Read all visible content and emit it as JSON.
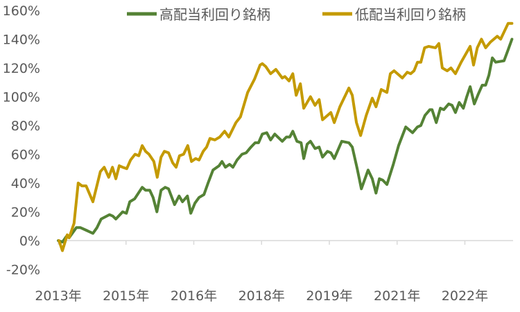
{
  "chart_data": {
    "type": "line",
    "title": "",
    "xlabel": "",
    "ylabel": "",
    "x_unit": "months since Jan 2013",
    "xlim": [
      0,
      120.8
    ],
    "ylim": [
      -20,
      160
    ],
    "y_ticks": [
      -20,
      0,
      20,
      40,
      60,
      80,
      100,
      120,
      140,
      160
    ],
    "y_tick_labels": [
      "-20%",
      "0%",
      "20%",
      "40%",
      "60%",
      "80%",
      "100%",
      "120%",
      "140%",
      "160%"
    ],
    "x_ticks": [
      0,
      18,
      36,
      54,
      72,
      90,
      108
    ],
    "x_tick_labels": [
      "2013年",
      "2015年",
      "2016年",
      "2018年",
      "2019年",
      "2021年",
      "2022年"
    ],
    "grid": false,
    "legend_position": "top",
    "series": [
      {
        "name": "高配当利回り銘柄",
        "color": "#548235",
        "points": [
          [
            0,
            0
          ],
          [
            1.1,
            -1
          ],
          [
            2.2,
            3
          ],
          [
            2.9,
            2
          ],
          [
            4.8,
            9
          ],
          [
            5.9,
            9
          ],
          [
            7.6,
            7
          ],
          [
            9.2,
            5
          ],
          [
            10.3,
            9
          ],
          [
            11.4,
            15
          ],
          [
            13.6,
            18
          ],
          [
            14.5,
            17
          ],
          [
            15.3,
            15
          ],
          [
            17.1,
            20
          ],
          [
            18.1,
            19
          ],
          [
            19.0,
            27
          ],
          [
            20.3,
            29
          ],
          [
            22.3,
            37
          ],
          [
            23.2,
            35
          ],
          [
            24.3,
            35
          ],
          [
            25.2,
            30
          ],
          [
            26.2,
            20
          ],
          [
            27.3,
            35
          ],
          [
            28.4,
            37
          ],
          [
            29.3,
            36
          ],
          [
            30.9,
            25
          ],
          [
            32.1,
            31
          ],
          [
            33.0,
            27
          ],
          [
            34.3,
            31
          ],
          [
            35.2,
            19
          ],
          [
            36.3,
            26
          ],
          [
            37.4,
            30
          ],
          [
            38.7,
            32
          ],
          [
            39.8,
            40
          ],
          [
            41.1,
            49
          ],
          [
            42.7,
            52
          ],
          [
            43.5,
            55
          ],
          [
            44.4,
            51
          ],
          [
            45.5,
            53
          ],
          [
            46.4,
            51
          ],
          [
            47.5,
            56
          ],
          [
            48.8,
            60
          ],
          [
            49.9,
            61
          ],
          [
            51.2,
            65
          ],
          [
            52.3,
            68
          ],
          [
            53.2,
            68
          ],
          [
            54.2,
            74
          ],
          [
            55.4,
            75
          ],
          [
            56.4,
            70
          ],
          [
            57.5,
            74
          ],
          [
            59.5,
            69
          ],
          [
            60.6,
            72
          ],
          [
            61.5,
            72
          ],
          [
            62.3,
            76
          ],
          [
            63.4,
            69
          ],
          [
            64.5,
            68
          ],
          [
            65.2,
            57
          ],
          [
            66.1,
            67
          ],
          [
            67.0,
            69
          ],
          [
            68.2,
            64
          ],
          [
            69.3,
            65
          ],
          [
            70.2,
            58
          ],
          [
            71.5,
            62
          ],
          [
            72.4,
            61
          ],
          [
            73.3,
            57
          ],
          [
            75.3,
            69
          ],
          [
            77.2,
            68
          ],
          [
            78.1,
            65
          ],
          [
            79.4,
            50
          ],
          [
            80.5,
            36
          ],
          [
            82.3,
            49
          ],
          [
            83.4,
            43
          ],
          [
            84.4,
            33
          ],
          [
            85.3,
            43
          ],
          [
            86.2,
            42
          ],
          [
            87.3,
            39
          ],
          [
            89.0,
            53
          ],
          [
            90.4,
            66
          ],
          [
            92.3,
            79
          ],
          [
            94.1,
            75
          ],
          [
            95.4,
            79
          ],
          [
            96.3,
            80
          ],
          [
            97.4,
            87
          ],
          [
            98.7,
            91
          ],
          [
            99.3,
            91
          ],
          [
            100.4,
            82
          ],
          [
            101.5,
            92
          ],
          [
            102.4,
            91
          ],
          [
            103.7,
            95
          ],
          [
            104.6,
            94
          ],
          [
            105.5,
            89
          ],
          [
            106.5,
            96
          ],
          [
            107.6,
            92
          ],
          [
            108.5,
            100
          ],
          [
            109.4,
            107
          ],
          [
            110.5,
            95
          ],
          [
            111.6,
            102
          ],
          [
            112.6,
            108
          ],
          [
            113.5,
            108
          ],
          [
            114.4,
            115
          ],
          [
            115.3,
            127
          ],
          [
            116.2,
            124
          ],
          [
            118.4,
            125
          ],
          [
            119.4,
            132
          ],
          [
            120.5,
            140
          ]
        ]
      },
      {
        "name": "低配当利回り銘柄",
        "color": "#C49A00",
        "points": [
          [
            0.2,
            0
          ],
          [
            1.1,
            -7
          ],
          [
            2.4,
            4
          ],
          [
            2.9,
            2
          ],
          [
            4.2,
            12
          ],
          [
            5.3,
            40
          ],
          [
            6.3,
            38
          ],
          [
            7.4,
            38
          ],
          [
            9.2,
            27
          ],
          [
            11.2,
            48
          ],
          [
            12.2,
            51
          ],
          [
            13.4,
            44
          ],
          [
            14.4,
            51
          ],
          [
            15.3,
            43
          ],
          [
            16.2,
            52
          ],
          [
            17.1,
            51
          ],
          [
            18.2,
            50
          ],
          [
            19.2,
            56
          ],
          [
            20.4,
            60
          ],
          [
            21.4,
            59
          ],
          [
            22.3,
            66
          ],
          [
            23.2,
            62
          ],
          [
            24.1,
            60
          ],
          [
            25.4,
            55
          ],
          [
            26.3,
            44
          ],
          [
            27.3,
            58
          ],
          [
            28.2,
            62
          ],
          [
            29.3,
            61
          ],
          [
            30.4,
            54
          ],
          [
            31.3,
            51
          ],
          [
            32.2,
            59
          ],
          [
            33.3,
            60
          ],
          [
            34.4,
            66
          ],
          [
            35.4,
            55
          ],
          [
            36.5,
            57
          ],
          [
            37.4,
            56
          ],
          [
            38.5,
            62
          ],
          [
            39.4,
            65
          ],
          [
            40.3,
            71
          ],
          [
            41.6,
            70
          ],
          [
            42.9,
            72
          ],
          [
            44.2,
            76
          ],
          [
            45.3,
            72
          ],
          [
            47.2,
            82
          ],
          [
            48.4,
            86
          ],
          [
            50.3,
            103
          ],
          [
            52.1,
            112
          ],
          [
            53.6,
            122
          ],
          [
            54.2,
            123
          ],
          [
            55.1,
            121
          ],
          [
            56.4,
            116
          ],
          [
            57.8,
            119
          ],
          [
            59.5,
            113
          ],
          [
            60.2,
            114
          ],
          [
            61.3,
            111
          ],
          [
            62.3,
            116
          ],
          [
            63.2,
            101
          ],
          [
            64.3,
            109
          ],
          [
            65.2,
            92
          ],
          [
            67.0,
            100
          ],
          [
            68.2,
            94
          ],
          [
            69.3,
            98
          ],
          [
            70.2,
            84
          ],
          [
            71.5,
            87
          ],
          [
            72.4,
            89
          ],
          [
            73.3,
            82
          ],
          [
            74.8,
            93
          ],
          [
            77.2,
            106
          ],
          [
            78.1,
            101
          ],
          [
            79.2,
            82
          ],
          [
            80.3,
            73
          ],
          [
            81.8,
            87
          ],
          [
            83.4,
            99
          ],
          [
            84.4,
            93
          ],
          [
            85.8,
            105
          ],
          [
            87.3,
            103
          ],
          [
            88.2,
            116
          ],
          [
            89.2,
            118
          ],
          [
            91.4,
            113
          ],
          [
            92.7,
            117
          ],
          [
            93.6,
            116
          ],
          [
            94.5,
            118
          ],
          [
            95.4,
            124
          ],
          [
            96.3,
            124
          ],
          [
            97.3,
            134
          ],
          [
            98.4,
            135
          ],
          [
            100.2,
            134
          ],
          [
            101.1,
            137
          ],
          [
            102.0,
            120
          ],
          [
            103.3,
            118
          ],
          [
            104.3,
            120
          ],
          [
            105.5,
            116
          ],
          [
            107.0,
            124
          ],
          [
            109.4,
            135
          ],
          [
            110.3,
            122
          ],
          [
            111.3,
            134
          ],
          [
            112.4,
            140
          ],
          [
            113.5,
            134
          ],
          [
            114.8,
            138
          ],
          [
            116.6,
            142
          ],
          [
            117.5,
            140
          ],
          [
            119.5,
            151
          ],
          [
            120.5,
            151
          ]
        ]
      }
    ]
  }
}
